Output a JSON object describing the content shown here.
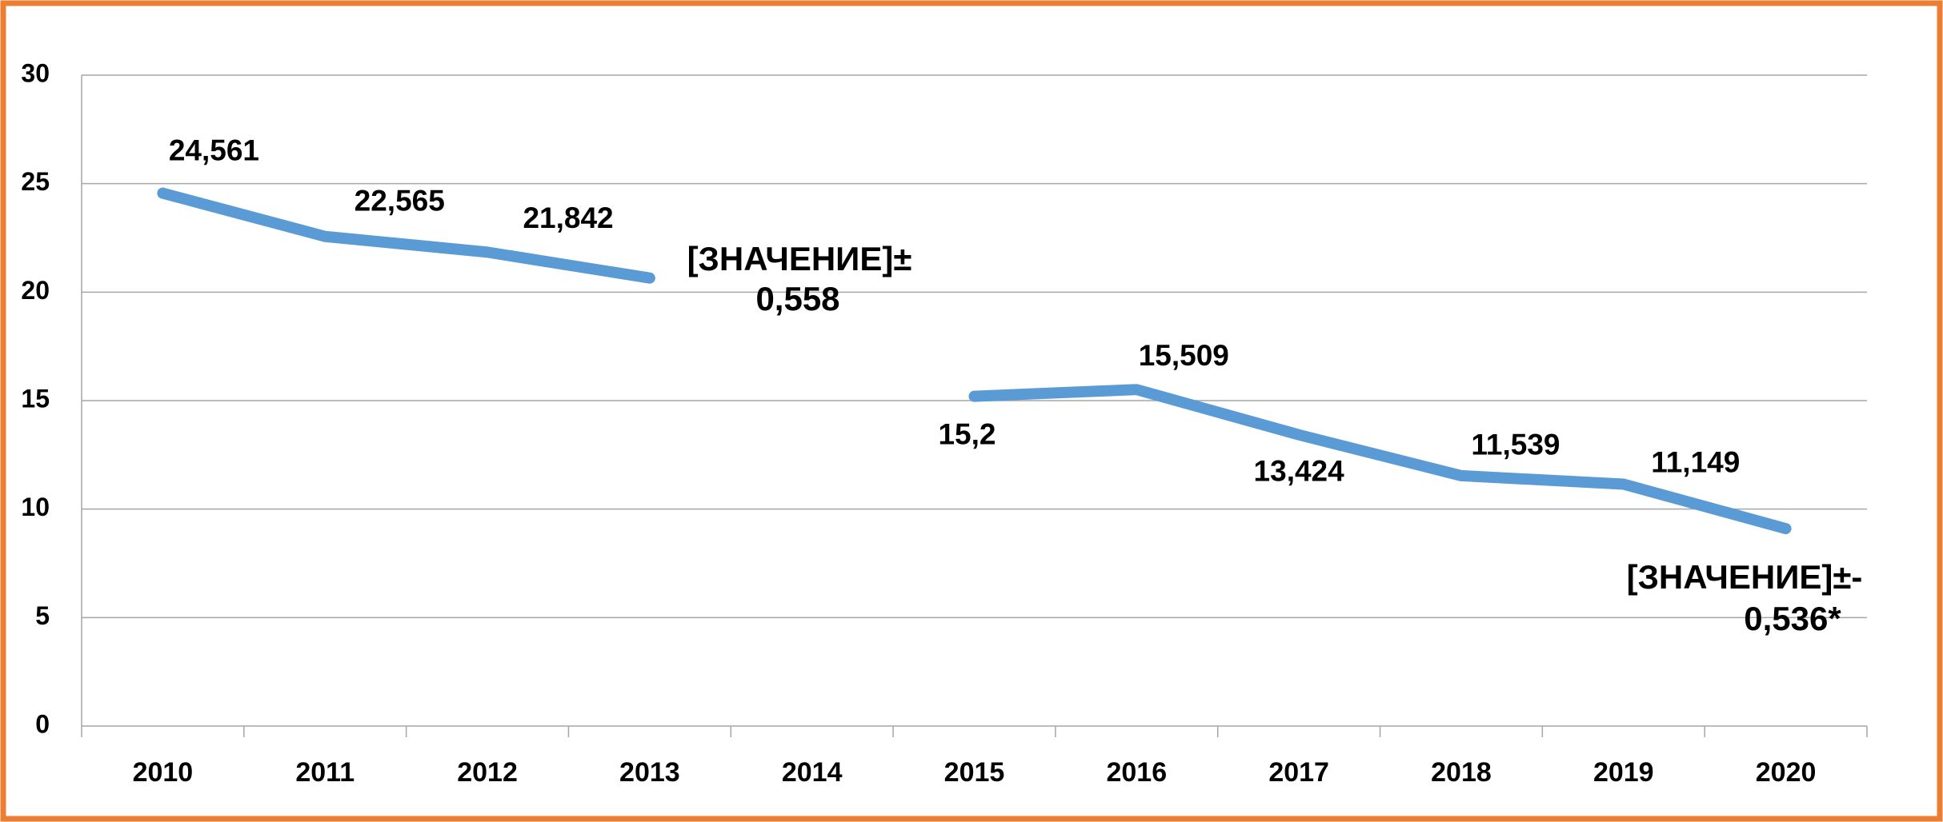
{
  "chart_data": {
    "type": "line",
    "categories": [
      "2010",
      "2011",
      "2012",
      "2013",
      "2014",
      "2015",
      "2016",
      "2017",
      "2018",
      "2019",
      "2020"
    ],
    "series": [
      {
        "name": "Значение",
        "color": "#5b9bd5",
        "values": [
          24.561,
          22.565,
          21.842,
          20.65,
          null,
          15.2,
          15.509,
          13.424,
          11.539,
          11.149,
          9.1
        ],
        "value_labels": [
          "24,561",
          "22,565",
          "21,842",
          null,
          null,
          "15,2",
          "15,509",
          "13,424",
          "11,539",
          "11,149",
          null
        ]
      }
    ],
    "annotations": [
      {
        "lines": [
          "[ЗНАЧЕНИЕ]±",
          "0,558"
        ]
      },
      {
        "lines": [
          "[ЗНАЧЕНИЕ]±-",
          "0,536*"
        ]
      }
    ],
    "ylim": [
      0,
      30
    ],
    "yticks": [
      0,
      5,
      10,
      15,
      20,
      25,
      30
    ],
    "grid": true,
    "border_color": "#ed7d31"
  }
}
